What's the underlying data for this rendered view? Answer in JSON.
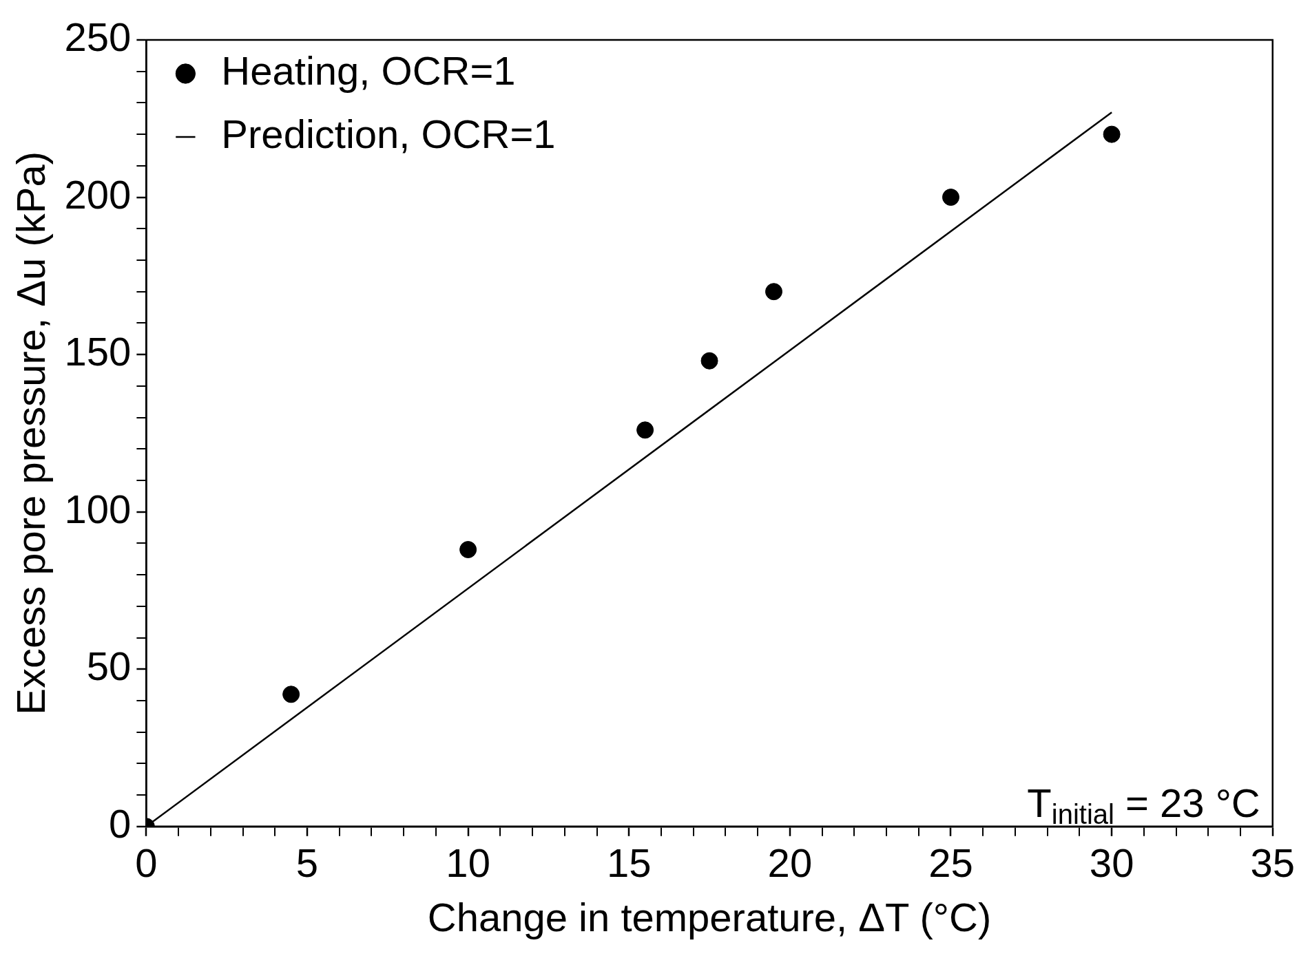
{
  "chart_data": {
    "type": "scatter",
    "xlabel": "Change in temperature, ΔT (°C)",
    "ylabel": "Excess pore pressure, Δu (kPa)",
    "series": [
      {
        "name": "Heating, OCR=1",
        "type": "scatter",
        "color": "#000000",
        "marker": "circle",
        "x": [
          0,
          4.5,
          10,
          15.5,
          17.5,
          19.5,
          25,
          30
        ],
        "values": [
          0,
          42,
          88,
          126,
          148,
          170,
          200,
          220
        ]
      },
      {
        "name": "Prediction, OCR=1",
        "type": "line",
        "color": "#000000",
        "marker": "none",
        "line_style": "solid",
        "x": [
          0,
          30
        ],
        "values": [
          0,
          227
        ]
      }
    ],
    "xlim": [
      0,
      35
    ],
    "ylim": [
      0,
      250
    ],
    "xticks": [
      0,
      {
        "value": 1,
        "label": null
      },
      {
        "value": 2,
        "label": null
      },
      {
        "value": 3,
        "label": null
      },
      {
        "value": 4,
        "label": null
      },
      5,
      {
        "value": 6,
        "label": null
      },
      {
        "value": 7,
        "label": null
      },
      {
        "value": 8,
        "label": null
      },
      {
        "value": 9,
        "label": null
      },
      10,
      {
        "value": 11,
        "label": null
      },
      {
        "value": 12,
        "label": null
      },
      {
        "value": 13,
        "label": null
      },
      {
        "value": 14,
        "label": null
      },
      15,
      {
        "value": 16,
        "label": null
      },
      {
        "value": 17,
        "label": null
      },
      {
        "value": 18,
        "label": null
      },
      {
        "value": 19,
        "label": null
      },
      20,
      {
        "value": 21,
        "label": null
      },
      {
        "value": 22,
        "label": null
      },
      {
        "value": 23,
        "label": null
      },
      {
        "value": 24,
        "label": null
      },
      25,
      {
        "value": 26,
        "label": null
      },
      {
        "value": 27,
        "label": null
      },
      {
        "value": 28,
        "label": null
      },
      {
        "value": 29,
        "label": null
      },
      30,
      {
        "value": 31,
        "label": null
      },
      {
        "value": 32,
        "label": null
      },
      {
        "value": 33,
        "label": null
      },
      {
        "value": 34,
        "label": null
      },
      35
    ],
    "yticks": [
      0,
      {
        "value": 10,
        "label": null
      },
      {
        "value": 20,
        "label": null
      },
      {
        "value": 30,
        "label": null
      },
      {
        "value": 40,
        "label": null
      },
      50,
      {
        "value": 60,
        "label": null
      },
      {
        "value": 70,
        "label": null
      },
      {
        "value": 80,
        "label": null
      },
      {
        "value": 90,
        "label": null
      },
      100,
      {
        "value": 110,
        "label": null
      },
      {
        "value": 120,
        "label": null
      },
      {
        "value": 130,
        "label": null
      },
      {
        "value": 140,
        "label": null
      },
      150,
      {
        "value": 160,
        "label": null
      },
      {
        "value": 170,
        "label": null
      },
      {
        "value": 180,
        "label": null
      },
      {
        "value": 190,
        "label": null
      },
      200,
      {
        "value": 210,
        "label": null
      },
      {
        "value": 220,
        "label": null
      },
      {
        "value": 230,
        "label": null
      },
      {
        "value": 240,
        "label": null
      },
      250
    ],
    "grid": false,
    "legend": "top left",
    "annotations": [
      "T$_{initial}$ = 23 °C"
    ]
  }
}
